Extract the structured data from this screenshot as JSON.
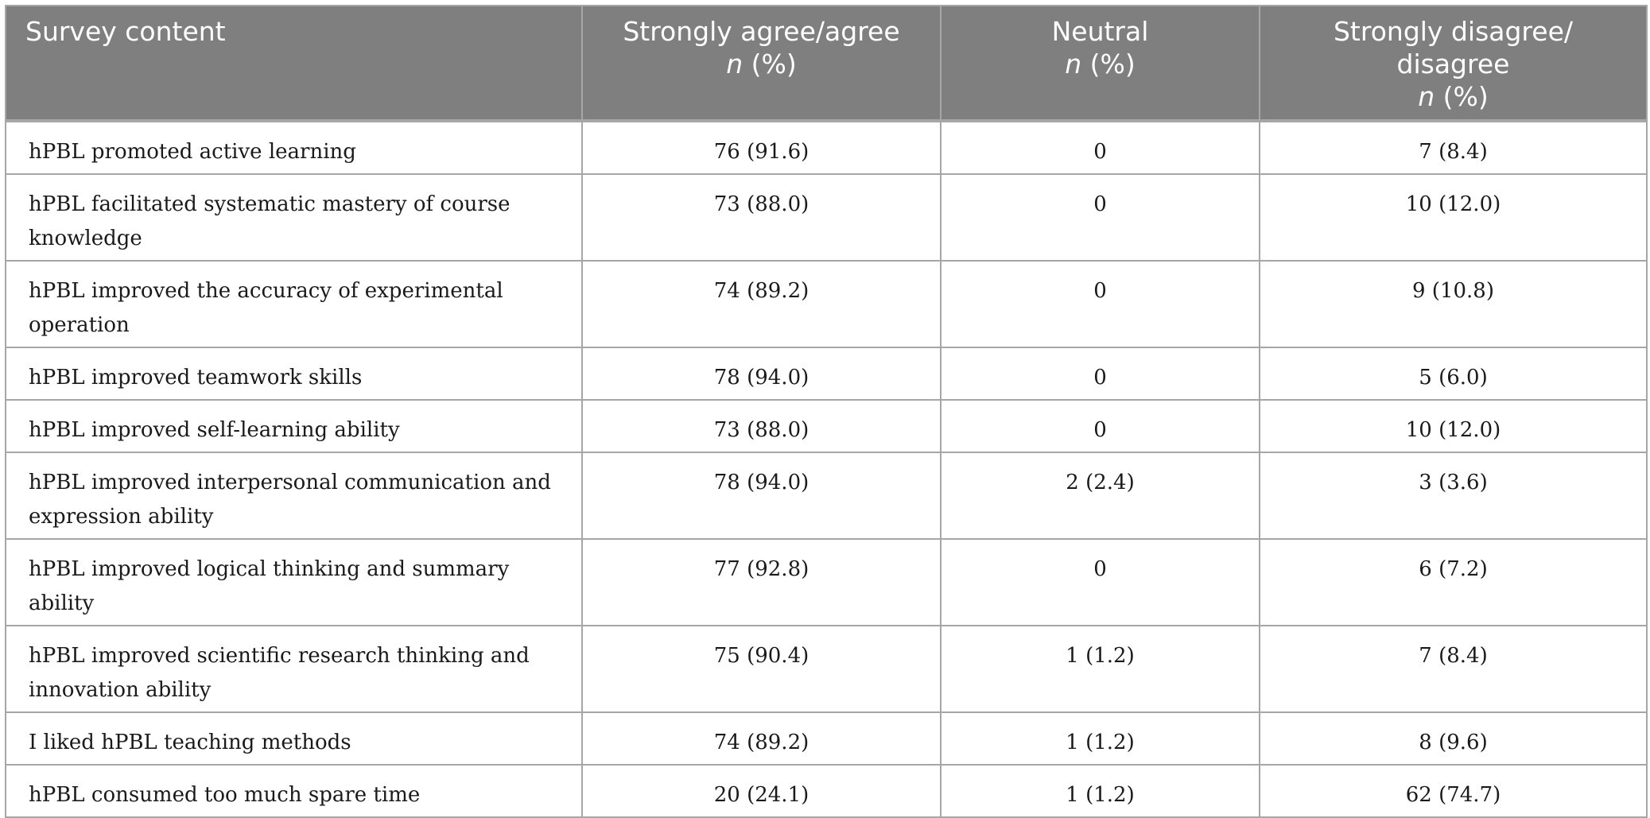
{
  "table": {
    "headers": {
      "survey_content": "Survey content",
      "agree_line1": "Strongly agree/agree",
      "neutral_line1": "Neutral",
      "disagree_line1": "Strongly disagree/",
      "disagree_line2": "disagree",
      "stat_n": "n",
      "stat_pct": "(%)"
    },
    "rows": [
      {
        "content": "hPBL promoted active learning",
        "agree": "76 (91.6)",
        "neutral": "0",
        "disagree": "7 (8.4)"
      },
      {
        "content": "hPBL facilitated systematic mastery of course knowledge",
        "agree": "73 (88.0)",
        "neutral": "0",
        "disagree": "10 (12.0)"
      },
      {
        "content": "hPBL improved the accuracy of experimental operation",
        "agree": "74 (89.2)",
        "neutral": "0",
        "disagree": "9 (10.8)"
      },
      {
        "content": "hPBL improved teamwork skills",
        "agree": "78 (94.0)",
        "neutral": "0",
        "disagree": "5 (6.0)"
      },
      {
        "content": "hPBL improved self-learning ability",
        "agree": "73 (88.0)",
        "neutral": "0",
        "disagree": "10 (12.0)"
      },
      {
        "content_line1": "hPBL improved interpersonal communication and",
        "content_line2": "expression ability",
        "agree": "78 (94.0)",
        "neutral": "2 (2.4)",
        "disagree": "3 (3.6)"
      },
      {
        "content": "hPBL improved logical thinking and summary ability",
        "agree": "77 (92.8)",
        "neutral": "0",
        "disagree": "6 (7.2)"
      },
      {
        "content_line1": "hPBL improved scientific research thinking and",
        "content_line2": "innovation ability",
        "agree": "75 (90.4)",
        "neutral": "1 (1.2)",
        "disagree": "7 (8.4)"
      },
      {
        "content": "I liked hPBL teaching methods",
        "agree": "74 (89.2)",
        "neutral": "1 (1.2)",
        "disagree": "8 (9.6)"
      },
      {
        "content": "hPBL consumed too much spare time",
        "agree": "20 (24.1)",
        "neutral": "1 (1.2)",
        "disagree": "62 (74.7)"
      }
    ]
  }
}
